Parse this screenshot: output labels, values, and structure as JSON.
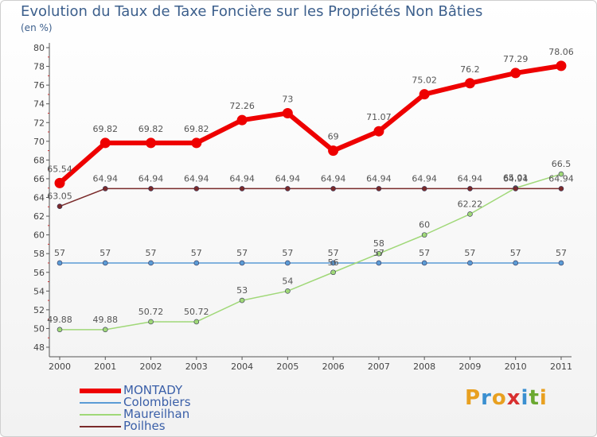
{
  "title": "Evolution du Taux de Taxe Foncière sur les Propriétés Non Bâties",
  "subtitle": "(en %)",
  "logo": {
    "text": "Proxiti",
    "letters": [
      "P",
      "r",
      "o",
      "x",
      "i",
      "t",
      "i"
    ],
    "colors": [
      "#e8a020",
      "#3a8fd0",
      "#e8a020",
      "#d83030",
      "#3a8fd0",
      "#6aa830",
      "#e8a020"
    ]
  },
  "chart_data": {
    "type": "line",
    "x": [
      "2000",
      "2001",
      "2002",
      "2003",
      "2004",
      "2005",
      "2006",
      "2007",
      "2008",
      "2009",
      "2010",
      "2011"
    ],
    "ylim": [
      48,
      80
    ],
    "yticks": [
      48,
      50,
      52,
      54,
      56,
      58,
      60,
      62,
      64,
      66,
      68,
      70,
      72,
      74,
      76,
      78,
      80
    ],
    "grid": false,
    "legend_position": "bottom-left",
    "series": [
      {
        "name": "MONTADY",
        "color": "#ee0000",
        "width": 6,
        "marker": 6.5,
        "values": [
          65.54,
          69.82,
          69.82,
          69.82,
          72.26,
          73,
          69,
          71.07,
          75.02,
          76.2,
          77.29,
          78.06
        ],
        "labels": [
          "65.54",
          "69.82",
          "69.82",
          "69.82",
          "72.26",
          "73",
          "69",
          "71.07",
          "75.02",
          "76.2",
          "77.29",
          "78.06"
        ]
      },
      {
        "name": "Colombiers",
        "color": "#5b9bd5",
        "width": 1.5,
        "marker": 3,
        "values": [
          57,
          57,
          57,
          57,
          57,
          57,
          57,
          57,
          57,
          57,
          57,
          57
        ],
        "labels": [
          "57",
          "57",
          "57",
          "57",
          "57",
          "57",
          "57",
          "57",
          "57",
          "57",
          "57",
          "57"
        ]
      },
      {
        "name": "Maureilhan",
        "color": "#a0d878",
        "width": 1.5,
        "marker": 3,
        "values": [
          49.88,
          49.88,
          50.72,
          50.72,
          53,
          54,
          56,
          58,
          60,
          62.22,
          65.01,
          66.5
        ],
        "labels": [
          "49.88",
          "49.88",
          "50.72",
          "50.72",
          "53",
          "54",
          "56",
          "58",
          "60",
          "62.22",
          "65.01",
          "66.5"
        ]
      },
      {
        "name": "Poilhes",
        "color": "#7a2a2a",
        "width": 1.5,
        "marker": 3,
        "values": [
          63.05,
          64.94,
          64.94,
          64.94,
          64.94,
          64.94,
          64.94,
          64.94,
          64.94,
          64.94,
          64.94,
          64.94
        ],
        "labels": [
          "63.05",
          "64.94",
          "64.94",
          "64.94",
          "64.94",
          "64.94",
          "64.94",
          "64.94",
          "64.94",
          "64.94",
          "64.94",
          "64.94"
        ]
      }
    ]
  }
}
